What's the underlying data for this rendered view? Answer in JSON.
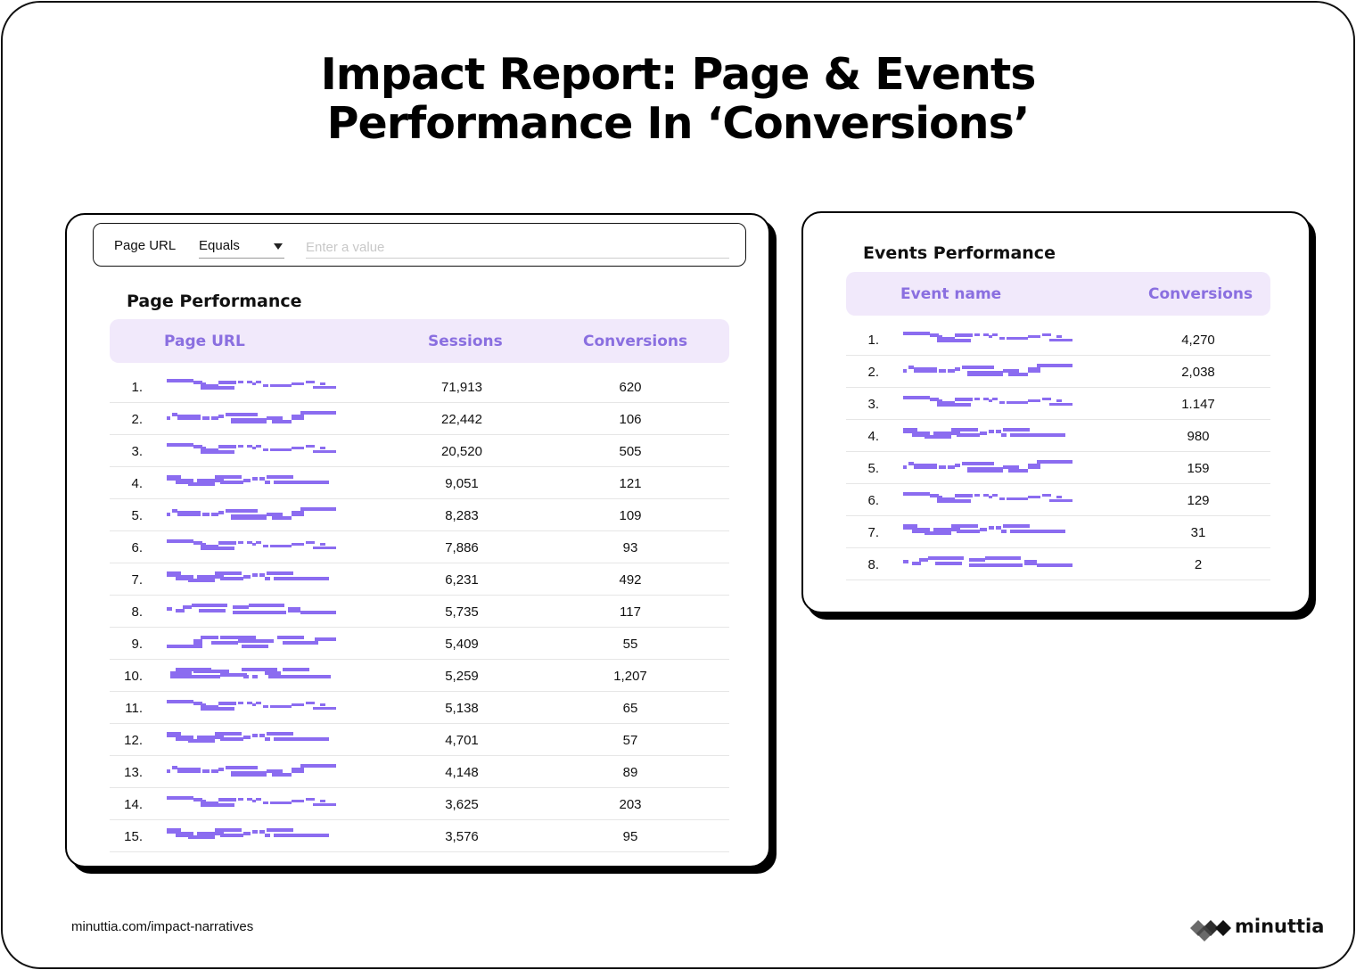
{
  "title": {
    "line1": "Impact Report: Page & Events",
    "line2": "Performance In ‘Conversions’"
  },
  "filter": {
    "label": "Page URL",
    "operator": "Equals",
    "placeholder": "Enter a value"
  },
  "page_performance": {
    "title": "Page Performance",
    "columns": [
      "Page URL",
      "Sessions",
      "Conversions"
    ],
    "rows": [
      {
        "rank": "1.",
        "sessions": "71,913",
        "conversions": "620",
        "url_pattern": 0
      },
      {
        "rank": "2.",
        "sessions": "22,442",
        "conversions": "106",
        "url_pattern": 1
      },
      {
        "rank": "3.",
        "sessions": "20,520",
        "conversions": "505",
        "url_pattern": 0
      },
      {
        "rank": "4.",
        "sessions": "9,051",
        "conversions": "121",
        "url_pattern": 2
      },
      {
        "rank": "5.",
        "sessions": "8,283",
        "conversions": "109",
        "url_pattern": 1
      },
      {
        "rank": "6.",
        "sessions": "7,886",
        "conversions": "93",
        "url_pattern": 0
      },
      {
        "rank": "7.",
        "sessions": "6,231",
        "conversions": "492",
        "url_pattern": 2
      },
      {
        "rank": "8.",
        "sessions": "5,735",
        "conversions": "117",
        "url_pattern": 3
      },
      {
        "rank": "9.",
        "sessions": "5,409",
        "conversions": "55",
        "url_pattern": 4
      },
      {
        "rank": "10.",
        "sessions": "5,259",
        "conversions": "1,207",
        "url_pattern": 5
      },
      {
        "rank": "11.",
        "sessions": "5,138",
        "conversions": "65",
        "url_pattern": 0
      },
      {
        "rank": "12.",
        "sessions": "4,701",
        "conversions": "57",
        "url_pattern": 2
      },
      {
        "rank": "13.",
        "sessions": "4,148",
        "conversions": "89",
        "url_pattern": 1
      },
      {
        "rank": "14.",
        "sessions": "3,625",
        "conversions": "203",
        "url_pattern": 0
      },
      {
        "rank": "15.",
        "sessions": "3,576",
        "conversions": "95",
        "url_pattern": 2
      }
    ]
  },
  "events_performance": {
    "title": "Events Performance",
    "columns": [
      "Event name",
      "Conversions"
    ],
    "rows": [
      {
        "rank": "1.",
        "conversions": "4,270",
        "name_pattern": 0
      },
      {
        "rank": "2.",
        "conversions": "2,038",
        "name_pattern": 1
      },
      {
        "rank": "3.",
        "conversions": "1.147",
        "name_pattern": 0
      },
      {
        "rank": "4.",
        "conversions": "980",
        "name_pattern": 2
      },
      {
        "rank": "5.",
        "conversions": "159",
        "name_pattern": 1
      },
      {
        "rank": "6.",
        "conversions": "129",
        "name_pattern": 0
      },
      {
        "rank": "7.",
        "conversions": "31",
        "name_pattern": 2
      },
      {
        "rank": "8.",
        "conversions": "2",
        "name_pattern": 3
      }
    ]
  },
  "footer": {
    "url": "minuttia.com/impact-narratives",
    "brand": "minuttia"
  },
  "colors": {
    "accent": "#8a6fe0",
    "redacted": "#8b6cf0",
    "header_bg": "#f1e9fb"
  }
}
